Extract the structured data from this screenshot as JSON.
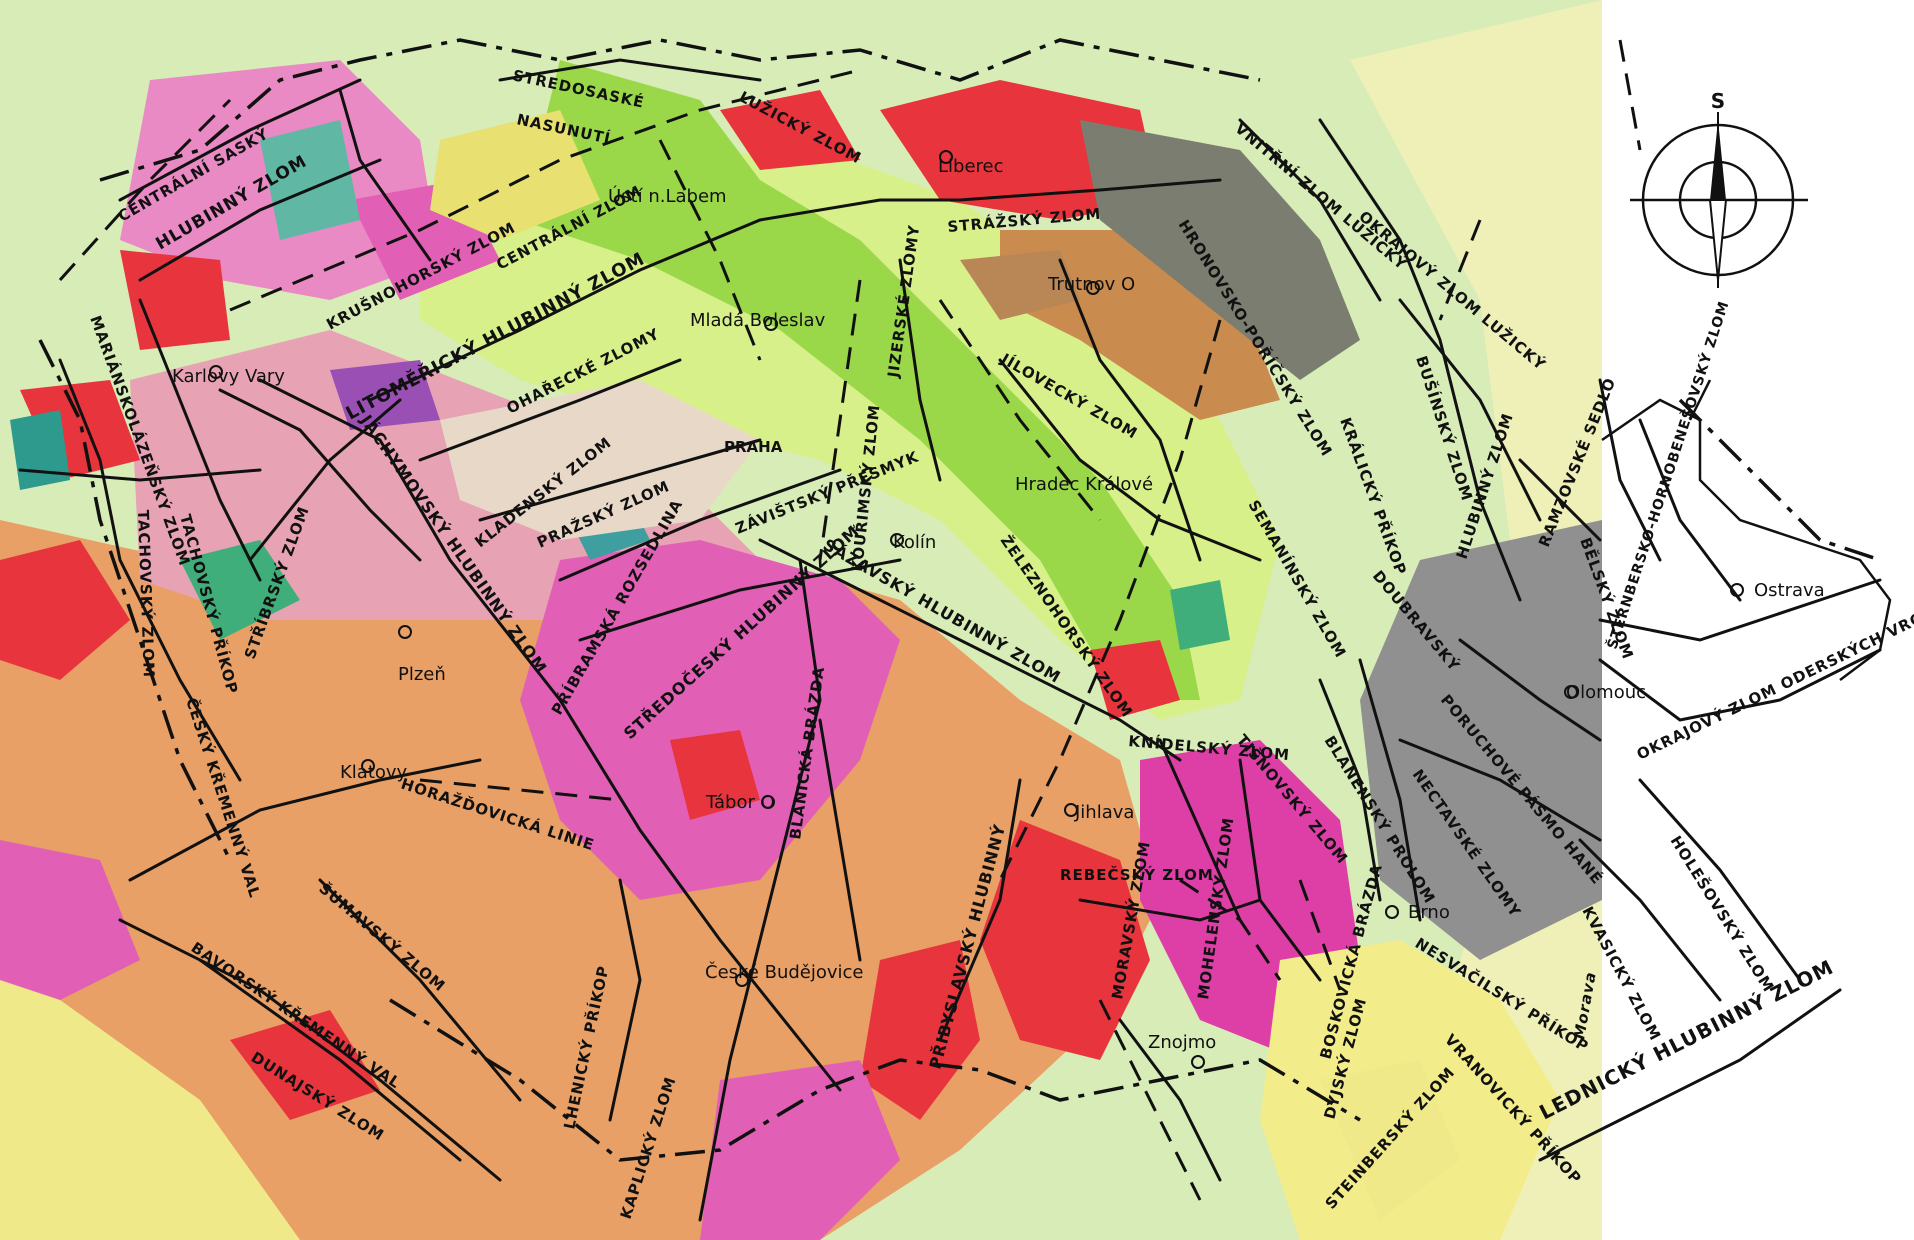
{
  "compass": {
    "north_letter": "S"
  },
  "colors": {
    "fault_line": "#111111",
    "granite_red": "#e8343d",
    "gneiss_orange": "#e8a066",
    "paleozoic_green": "#9ad84a",
    "cretaceous_lightgreen": "#d8f08a",
    "pink": "#e98ac4",
    "magenta": "#dd3fa6",
    "grey": "#8f8f8f",
    "yellow": "#f2ec8a"
  },
  "cities": [
    {
      "id": "liberec",
      "label": "Liberec"
    },
    {
      "id": "usti",
      "label": "Ústí n.Labem"
    },
    {
      "id": "trutnov",
      "label": "Trutnov O"
    },
    {
      "id": "mlada-boleslav",
      "label": "Mladá Boleslav"
    },
    {
      "id": "karlovy-vary",
      "label": "Karlovy Vary"
    },
    {
      "id": "praha",
      "label": "PRAHA"
    },
    {
      "id": "hradec",
      "label": "Hradec Králové"
    },
    {
      "id": "kolin",
      "label": "Kolín"
    },
    {
      "id": "plzen",
      "label": "Plzeň"
    },
    {
      "id": "klatovy",
      "label": "Klatovy"
    },
    {
      "id": "tabor",
      "label": "Tábor O"
    },
    {
      "id": "jihlava",
      "label": "Jihlava"
    },
    {
      "id": "ceske-budejovice",
      "label": "České Budějovice"
    },
    {
      "id": "brno",
      "label": "Brno"
    },
    {
      "id": "znojmo",
      "label": "Znojmo"
    },
    {
      "id": "olomouc",
      "label": "Olomouc"
    },
    {
      "id": "ostrava",
      "label": "Ostrava"
    }
  ],
  "faults": [
    {
      "id": "centralni-sasky",
      "label": "CENTRÁLNÍ SASKÝ"
    },
    {
      "id": "hlubinny-zlom-1",
      "label": "HLUBINNÝ ZLOM"
    },
    {
      "id": "stredosaske",
      "label": "STŘEDOSASKÉ"
    },
    {
      "id": "nasunuti",
      "label": "NASUNUTÍ"
    },
    {
      "id": "luzicky",
      "label": "LUŽICKÝ ZLOM"
    },
    {
      "id": "krusnohorsky",
      "label": "KRUŠNOHORSKÝ ZLOM"
    },
    {
      "id": "centralni-zlom",
      "label": "CENTRÁLNÍ ZLOM"
    },
    {
      "id": "litomericky",
      "label": "LITOMĚŘICKÝ HLUBINNÝ ZLOM"
    },
    {
      "id": "strazsky",
      "label": "STRÁŽSKÝ ZLOM"
    },
    {
      "id": "vnitrni-luzicky",
      "label": "VNITŘNÍ ZLOM LUŽICKÝ"
    },
    {
      "id": "okrajovy-luzicky",
      "label": "OKRAJOVÝ ZLOM LUŽICKÝ"
    },
    {
      "id": "hronovsko",
      "label": "HRONOVSKO-POŘÍČSKÝ ZLOM"
    },
    {
      "id": "jizerske",
      "label": "JIZERSKÉ ZLOMY"
    },
    {
      "id": "omarecke",
      "label": "OHAŘECKÉ ZLOMY"
    },
    {
      "id": "marianskolazensky",
      "label": "MARIÁNSKOLÁZEŇSKÝ ZLOM"
    },
    {
      "id": "jachymovsky",
      "label": "JÁCHYMOVSKÝ HLUBINNÝ ZLOM"
    },
    {
      "id": "kladensky",
      "label": "KLADENSKÝ ZLOM"
    },
    {
      "id": "prazsky",
      "label": "PRAŽSKÝ ZLOM"
    },
    {
      "id": "kourimsky",
      "label": "KOUŘIMSKÝ ZLOM"
    },
    {
      "id": "jilovecky",
      "label": "JÍLOVECKÝ ZLOM"
    },
    {
      "id": "businsky",
      "label": "BUŠÍNSKÝ ZLOM"
    },
    {
      "id": "tachovsky-zlom",
      "label": "TACHOVSKÝ ZLOM"
    },
    {
      "id": "tachovsky-prikop",
      "label": "TACHOVSKÝ PŘÍKOP"
    },
    {
      "id": "stribrsky",
      "label": "STŘÍBRSKÝ ZLOM"
    },
    {
      "id": "zelezno",
      "label": "ŽELEZNOHORSKÝ ZLOM"
    },
    {
      "id": "semanin",
      "label": "SEMANÍNSKÝ ZLOM"
    },
    {
      "id": "kralicky",
      "label": "KRÁLICKÝ PŘÍKOP"
    },
    {
      "id": "hlubinny-ramzovsky",
      "label": "HLUBINNÝ ZLOM"
    },
    {
      "id": "ramzovske",
      "label": "RAMZOVSKÉ SEDLO"
    },
    {
      "id": "sternbersko",
      "label": "ŠTERNBERSKO-HORNOBENEŠOVSKÝ ZLOM"
    },
    {
      "id": "belsky",
      "label": "BĚLSKÝ ZLOM"
    },
    {
      "id": "pribramska",
      "label": "PŘÍBRAMSKÁ ROZSEDLINA"
    },
    {
      "id": "zavistsky",
      "label": "ZÁVIŠTSKÝ PŘESMYK"
    },
    {
      "id": "stredocesky",
      "label": "STŘEDOČESKÝ HLUBINNÝ ZLOM"
    },
    {
      "id": "sazavsky",
      "label": "SÁZAVSKÝ HLUBINNÝ ZLOM"
    },
    {
      "id": "ceskyk-kremenny",
      "label": "ČESKÝ KŘEMENNÝ VAL"
    },
    {
      "id": "blanicka",
      "label": "BLANICKÁ BRÁZDA"
    },
    {
      "id": "knicelsky",
      "label": "KNÍDELSKÝ ZLOM"
    },
    {
      "id": "tisnovsky",
      "label": "TIŠNOVSKÝ ZLOM"
    },
    {
      "id": "boskovicka",
      "label": "BOSKOVICKÁ BRÁZDA"
    },
    {
      "id": "blanensky",
      "label": "BLANENSKÝ PROLOM"
    },
    {
      "id": "okrajovy-oderskych",
      "label": "OKRAJOVÝ ZLOM ODERSKÝCH VRCHŮ"
    },
    {
      "id": "doubravsky",
      "label": "DOUBRAVSKÝ"
    },
    {
      "id": "poruchove",
      "label": "PORUCHOVÉ PÁSMO HANÉ"
    },
    {
      "id": "nectavske",
      "label": "NECTAVSKÉ ZLOMY"
    },
    {
      "id": "kvasicky",
      "label": "KVASICKÝ ZLOM"
    },
    {
      "id": "holesovsky",
      "label": "HOLEŠOVSKÝ ZLOM"
    },
    {
      "id": "horazdovicka",
      "label": "HORAŽĎOVICKÁ LINIE"
    },
    {
      "id": "sumavsky",
      "label": "ŠUMAVSKÝ ZLOM"
    },
    {
      "id": "bavorsky",
      "label": "BAVORSKÝ KŘEMENNÝ VAL"
    },
    {
      "id": "dunajsky",
      "label": "DUNAJSKÝ ZLOM"
    },
    {
      "id": "lhenicky",
      "label": "LHENICKÝ PŘÍKOP"
    },
    {
      "id": "kaplicky",
      "label": "KAPLICKÝ ZLOM"
    },
    {
      "id": "pribyslavsky",
      "label": "PŘIBYSLAVSKÝ HLUBINNÝ"
    },
    {
      "id": "rebecsky",
      "label": "REBEČSKÝ ZLOM"
    },
    {
      "id": "moravsky",
      "label": "MORAVSKÝ ZLOM"
    },
    {
      "id": "moheln",
      "label": "MOHELENSKÝ ZLOM"
    },
    {
      "id": "dyjsky",
      "label": "DYJSKÝ ZLOM"
    },
    {
      "id": "nesvacilsky",
      "label": "NESVAČILSKÝ PŘÍKOP"
    },
    {
      "id": "vranovicky",
      "label": "VRANOVICKÝ PŘÍKOP"
    },
    {
      "id": "steinbersky",
      "label": "STEINBERSKÝ ZLOM"
    },
    {
      "id": "morava",
      "label": "Morava"
    },
    {
      "id": "lednicky",
      "label": "LEDNICKÝ HLUBINNÝ ZLOM"
    }
  ]
}
